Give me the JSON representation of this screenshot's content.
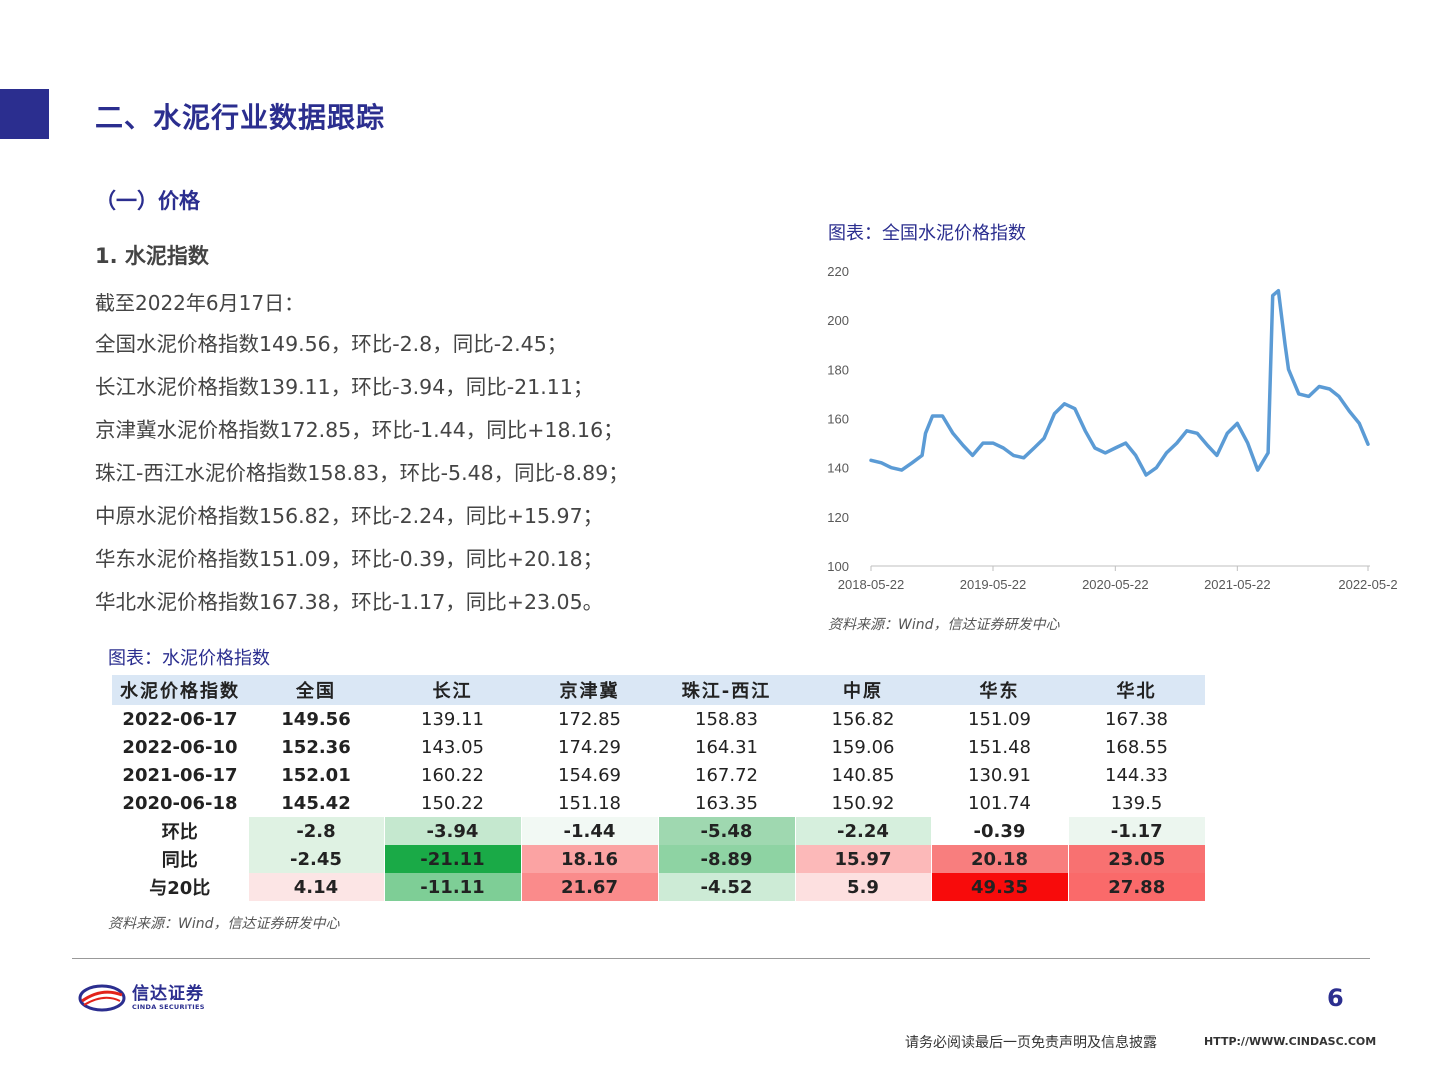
{
  "header": {
    "section_title": "二、水泥行业数据跟踪",
    "sub_title": "（一）价格",
    "sub2_title": "1. 水泥指数",
    "cutoff": "截至2022年6月17日：",
    "lines": [
      "全国水泥价格指数149.56，环比-2.8，同比-2.45；",
      "长江水泥价格指数139.11，环比-3.94，同比-21.11；",
      "京津冀水泥价格指数172.85，环比-1.44，同比+18.16；",
      "珠江-西江水泥价格指数158.83，环比-5.48，同比-8.89；",
      "中原水泥价格指数156.82，环比-2.24，同比+15.97；",
      "华东水泥价格指数151.09，环比-0.39，同比+20.18；",
      "华北水泥价格指数167.38，环比-1.17，同比+23.05。"
    ]
  },
  "chart_title": "图表：全国水泥价格指数",
  "chart_source": "资料来源：Wind，信达证券研发中心",
  "chart_data": {
    "type": "line",
    "title": "图表：全国水泥价格指数",
    "xlabel": "",
    "ylabel": "",
    "ylim": [
      100,
      220
    ],
    "yticks": [
      "220",
      "200",
      "180",
      "160",
      "140",
      "120",
      "100"
    ],
    "xticks": [
      "2018-05-22",
      "2019-05-22",
      "2020-05-22",
      "2021-05-22",
      "2022-05-2"
    ],
    "color": "#5b9bd5",
    "grid": false,
    "series": [
      {
        "x": [
          "2018-05-22",
          "2018-06-22",
          "2018-07-22",
          "2018-08-22",
          "2018-09-22",
          "2018-10-22",
          "2018-11-01",
          "2018-11-22",
          "2018-12-22",
          "2019-01-22",
          "2019-02-22",
          "2019-03-22",
          "2019-04-22",
          "2019-05-22",
          "2019-06-22",
          "2019-07-22",
          "2019-08-22",
          "2019-09-22",
          "2019-10-22",
          "2019-11-22",
          "2019-12-22",
          "2020-01-22",
          "2020-02-22",
          "2020-03-22",
          "2020-04-22",
          "2020-05-22",
          "2020-06-22",
          "2020-07-22",
          "2020-08-22",
          "2020-09-22",
          "2020-10-22",
          "2020-11-22",
          "2020-12-22",
          "2021-01-22",
          "2021-02-22",
          "2021-03-22",
          "2021-04-22",
          "2021-05-22",
          "2021-06-22",
          "2021-07-22",
          "2021-08-22",
          "2021-09-05",
          "2021-09-22",
          "2021-10-12",
          "2021-10-22",
          "2021-11-22",
          "2021-12-22",
          "2022-01-22",
          "2022-02-22",
          "2022-03-22",
          "2022-04-22",
          "2022-05-22",
          "2022-06-17"
        ],
        "values": [
          143,
          142,
          140,
          139,
          142,
          145,
          154,
          161,
          161,
          154,
          149,
          145,
          150,
          150,
          148,
          145,
          144,
          148,
          152,
          162,
          166,
          164,
          155,
          148,
          146,
          148,
          150,
          145,
          137,
          140,
          146,
          150,
          155,
          154,
          149,
          145,
          154,
          158,
          150,
          139,
          146,
          210,
          212,
          190,
          180,
          170,
          169,
          173,
          172,
          169,
          163,
          158,
          149.56
        ]
      }
    ]
  },
  "table_title": "图表：水泥价格指数",
  "table_source": "资料来源：Wind，信达证券研发中心",
  "table": {
    "headers": [
      "水泥价格指数",
      "全国",
      "长江",
      "京津冀",
      "珠江-西江",
      "中原",
      "华东",
      "华北"
    ],
    "rows": [
      [
        "2022-06-17",
        "149.56",
        "139.11",
        "172.85",
        "158.83",
        "156.82",
        "151.09",
        "167.38"
      ],
      [
        "2022-06-10",
        "152.36",
        "143.05",
        "174.29",
        "164.31",
        "159.06",
        "151.48",
        "168.55"
      ],
      [
        "2021-06-17",
        "152.01",
        "160.22",
        "154.69",
        "167.72",
        "140.85",
        "130.91",
        "144.33"
      ],
      [
        "2020-06-18",
        "145.42",
        "150.22",
        "151.18",
        "163.35",
        "150.92",
        "101.74",
        "139.5"
      ],
      [
        "环比",
        "-2.8",
        "-3.94",
        "-1.44",
        "-5.48",
        "-2.24",
        "-0.39",
        "-1.17"
      ],
      [
        "同比",
        "-2.45",
        "-21.11",
        "18.16",
        "-8.89",
        "15.97",
        "20.18",
        "23.05"
      ],
      [
        "与20比",
        "4.14",
        "-11.11",
        "21.67",
        "-4.52",
        "5.9",
        "49.35",
        "27.88"
      ]
    ],
    "cell_colors": [
      [
        "#dff2e3",
        "#c5e8cf",
        "#f2f9f4",
        "#9fd8b0",
        "#d6efdd",
        "#ffffff",
        "#ecf6ef"
      ],
      [
        "#dff2e3",
        "#1aaa47",
        "#fba3a3",
        "#8ed3a3",
        "#fcb9b9",
        "#f87e7e",
        "#f87171"
      ],
      [
        "#fce5e5",
        "#7ece96",
        "#fa8b8b",
        "#cdebd6",
        "#fde0e0",
        "#f80b0b",
        "#fa6a6a"
      ]
    ]
  },
  "footer": {
    "logo_cn": "信达证券",
    "logo_en": "CINDA SECURITIES",
    "page_number": "6",
    "disclaimer": "请务必阅读最后一页免责声明及信息披露",
    "url": "HTTP://WWW.CINDASC.COM"
  }
}
